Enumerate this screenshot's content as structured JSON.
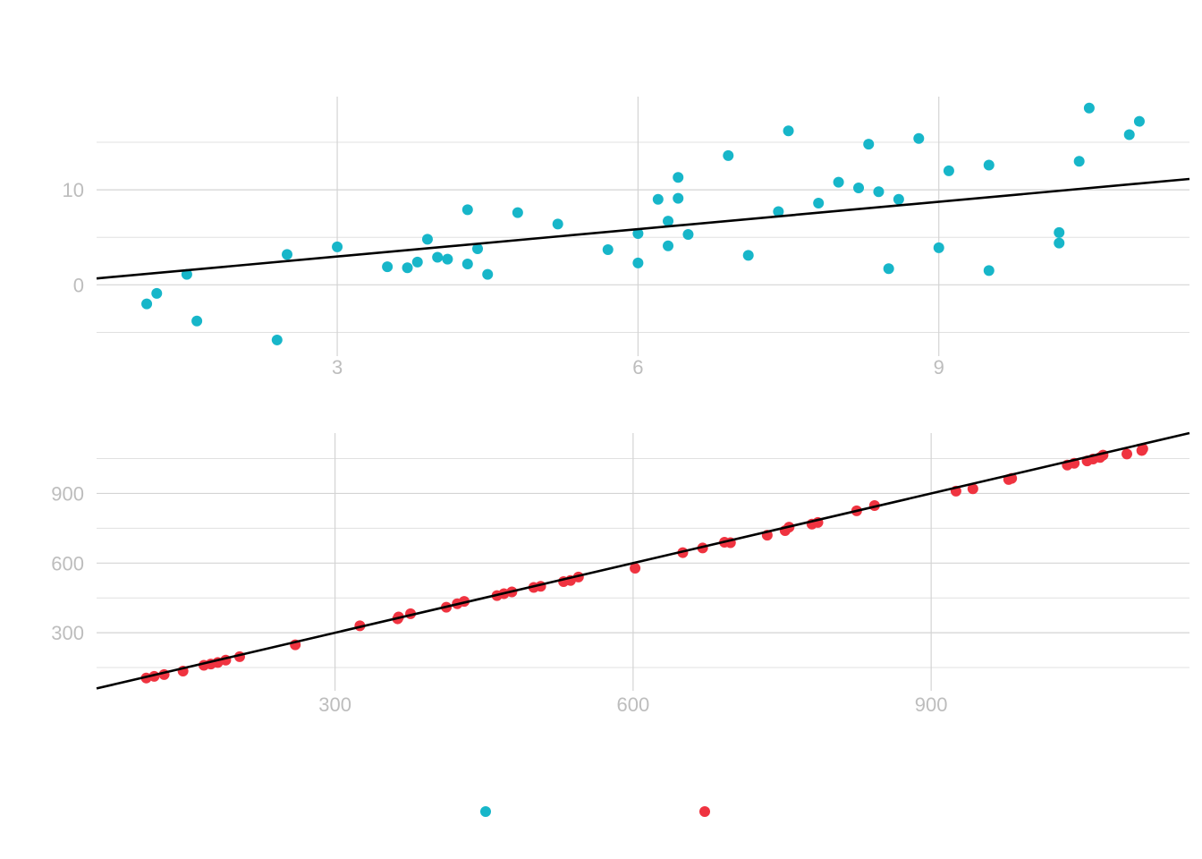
{
  "colors": {
    "series_a": "#17b6c9",
    "series_b": "#ef3340",
    "fit_line": "#000000",
    "grid": "#d4d4d4",
    "tick_text": "#bdbdbd"
  },
  "chart_data": [
    {
      "type": "scatter",
      "title": "",
      "xlabel": "",
      "ylabel": "",
      "xlim": [
        0.6,
        11.5
      ],
      "ylim": [
        -7.5,
        19.8
      ],
      "x_ticks": [
        3,
        6,
        9
      ],
      "x_tick_labels": [
        "3",
        "6",
        "9"
      ],
      "y_ticks": [
        0,
        10
      ],
      "y_tick_labels": [
        "0",
        "10"
      ],
      "y_minor_grid": [
        -5,
        5,
        15
      ],
      "grid": true,
      "regression_line": {
        "intercept": 0.1,
        "slope": 0.96
      },
      "series": [
        {
          "points": [
            [
              1.1,
              -2.0
            ],
            [
              1.2,
              -0.9
            ],
            [
              1.5,
              1.1
            ],
            [
              1.6,
              -3.8
            ],
            [
              2.4,
              -5.8
            ],
            [
              2.5,
              3.2
            ],
            [
              3.0,
              4.0
            ],
            [
              3.5,
              1.9
            ],
            [
              3.7,
              1.8
            ],
            [
              3.8,
              2.4
            ],
            [
              3.9,
              4.8
            ],
            [
              4.0,
              2.9
            ],
            [
              4.1,
              2.7
            ],
            [
              4.3,
              2.2
            ],
            [
              4.3,
              7.9
            ],
            [
              4.4,
              3.8
            ],
            [
              4.5,
              1.1
            ],
            [
              4.8,
              7.6
            ],
            [
              5.2,
              6.4
            ],
            [
              5.7,
              3.7
            ],
            [
              6.0,
              5.4
            ],
            [
              6.0,
              2.3
            ],
            [
              6.2,
              9.0
            ],
            [
              6.3,
              6.7
            ],
            [
              6.3,
              4.1
            ],
            [
              6.4,
              11.3
            ],
            [
              6.4,
              9.1
            ],
            [
              6.5,
              5.3
            ],
            [
              6.9,
              13.6
            ],
            [
              7.1,
              3.1
            ],
            [
              7.4,
              7.7
            ],
            [
              7.5,
              16.2
            ],
            [
              7.8,
              8.6
            ],
            [
              8.0,
              10.8
            ],
            [
              8.2,
              10.2
            ],
            [
              8.3,
              14.8
            ],
            [
              8.4,
              9.8
            ],
            [
              8.5,
              1.7
            ],
            [
              8.6,
              9.0
            ],
            [
              8.8,
              15.4
            ],
            [
              9.0,
              3.9
            ],
            [
              9.1,
              12.0
            ],
            [
              9.5,
              12.6
            ],
            [
              9.5,
              1.5
            ],
            [
              10.2,
              5.5
            ],
            [
              10.2,
              4.4
            ],
            [
              10.4,
              13.0
            ],
            [
              10.5,
              18.6
            ],
            [
              10.9,
              15.8
            ],
            [
              11.0,
              17.2
            ]
          ]
        }
      ]
    },
    {
      "type": "scatter",
      "title": "",
      "xlabel": "",
      "ylabel": "",
      "xlim": [
        60,
        1160
      ],
      "ylim": [
        50,
        1160
      ],
      "x_ticks": [
        300,
        600,
        900
      ],
      "x_tick_labels": [
        "300",
        "600",
        "900"
      ],
      "y_ticks": [
        300,
        600,
        900
      ],
      "y_tick_labels": [
        "300",
        "600",
        "900"
      ],
      "y_minor_grid": [
        150,
        450,
        750,
        1050
      ],
      "grid": true,
      "regression_line": {
        "intercept": 0,
        "slope": 1
      },
      "series": [
        {
          "points": [
            [
              110,
              105
            ],
            [
              118,
              112
            ],
            [
              128,
              120
            ],
            [
              147,
              135
            ],
            [
              168,
              160
            ],
            [
              175,
              165
            ],
            [
              182,
              172
            ],
            [
              190,
              182
            ],
            [
              204,
              197
            ],
            [
              260,
              248
            ],
            [
              325,
              330
            ],
            [
              363,
              360
            ],
            [
              364,
              368
            ],
            [
              376,
              382
            ],
            [
              412,
              410
            ],
            [
              423,
              425
            ],
            [
              430,
              435
            ],
            [
              463,
              460
            ],
            [
              470,
              468
            ],
            [
              478,
              476
            ],
            [
              500,
              495
            ],
            [
              507,
              500
            ],
            [
              530,
              520
            ],
            [
              537,
              525
            ],
            [
              545,
              540
            ],
            [
              602,
              578
            ],
            [
              650,
              645
            ],
            [
              670,
              665
            ],
            [
              692,
              690
            ],
            [
              698,
              688
            ],
            [
              735,
              720
            ],
            [
              753,
              740
            ],
            [
              757,
              755
            ],
            [
              780,
              768
            ],
            [
              786,
              775
            ],
            [
              825,
              825
            ],
            [
              843,
              848
            ],
            [
              925,
              910
            ],
            [
              942,
              920
            ],
            [
              978,
              960
            ],
            [
              981,
              965
            ],
            [
              1037,
              1022
            ],
            [
              1044,
              1030
            ],
            [
              1057,
              1040
            ],
            [
              1063,
              1048
            ],
            [
              1070,
              1055
            ],
            [
              1073,
              1065
            ],
            [
              1097,
              1070
            ],
            [
              1112,
              1085
            ],
            [
              1113,
              1092
            ]
          ]
        }
      ]
    }
  ],
  "legend": {
    "placement": "bottom",
    "entries": [
      {
        "color_key": "series_a"
      },
      {
        "color_key": "series_b"
      }
    ]
  }
}
